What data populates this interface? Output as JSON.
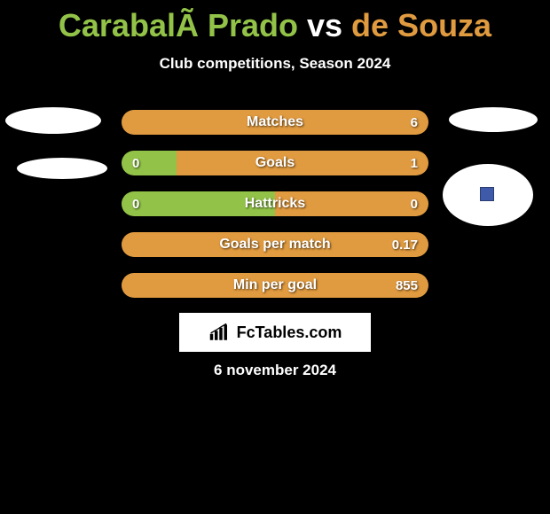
{
  "colors": {
    "player1": "#92c348",
    "player2": "#e09a3f",
    "title_mid": "#ffffff",
    "bar_track": "#000000"
  },
  "header": {
    "title_parts": {
      "p1": "CarabalÃ Prado",
      "vs": " vs ",
      "p2": "de Souza"
    },
    "subtitle": "Club competitions, Season 2024"
  },
  "bars": [
    {
      "label": "Matches",
      "left": "",
      "right": "6",
      "left_pct": 0,
      "right_pct": 100
    },
    {
      "label": "Goals",
      "left": "0",
      "right": "1",
      "left_pct": 18,
      "right_pct": 82
    },
    {
      "label": "Hattricks",
      "left": "0",
      "right": "0",
      "left_pct": 50,
      "right_pct": 50
    },
    {
      "label": "Goals per match",
      "left": "",
      "right": "0.17",
      "left_pct": 0,
      "right_pct": 100
    },
    {
      "label": "Min per goal",
      "left": "",
      "right": "855",
      "left_pct": 0,
      "right_pct": 100
    }
  ],
  "logo_text": "FcTables.com",
  "date": "6 november 2024"
}
